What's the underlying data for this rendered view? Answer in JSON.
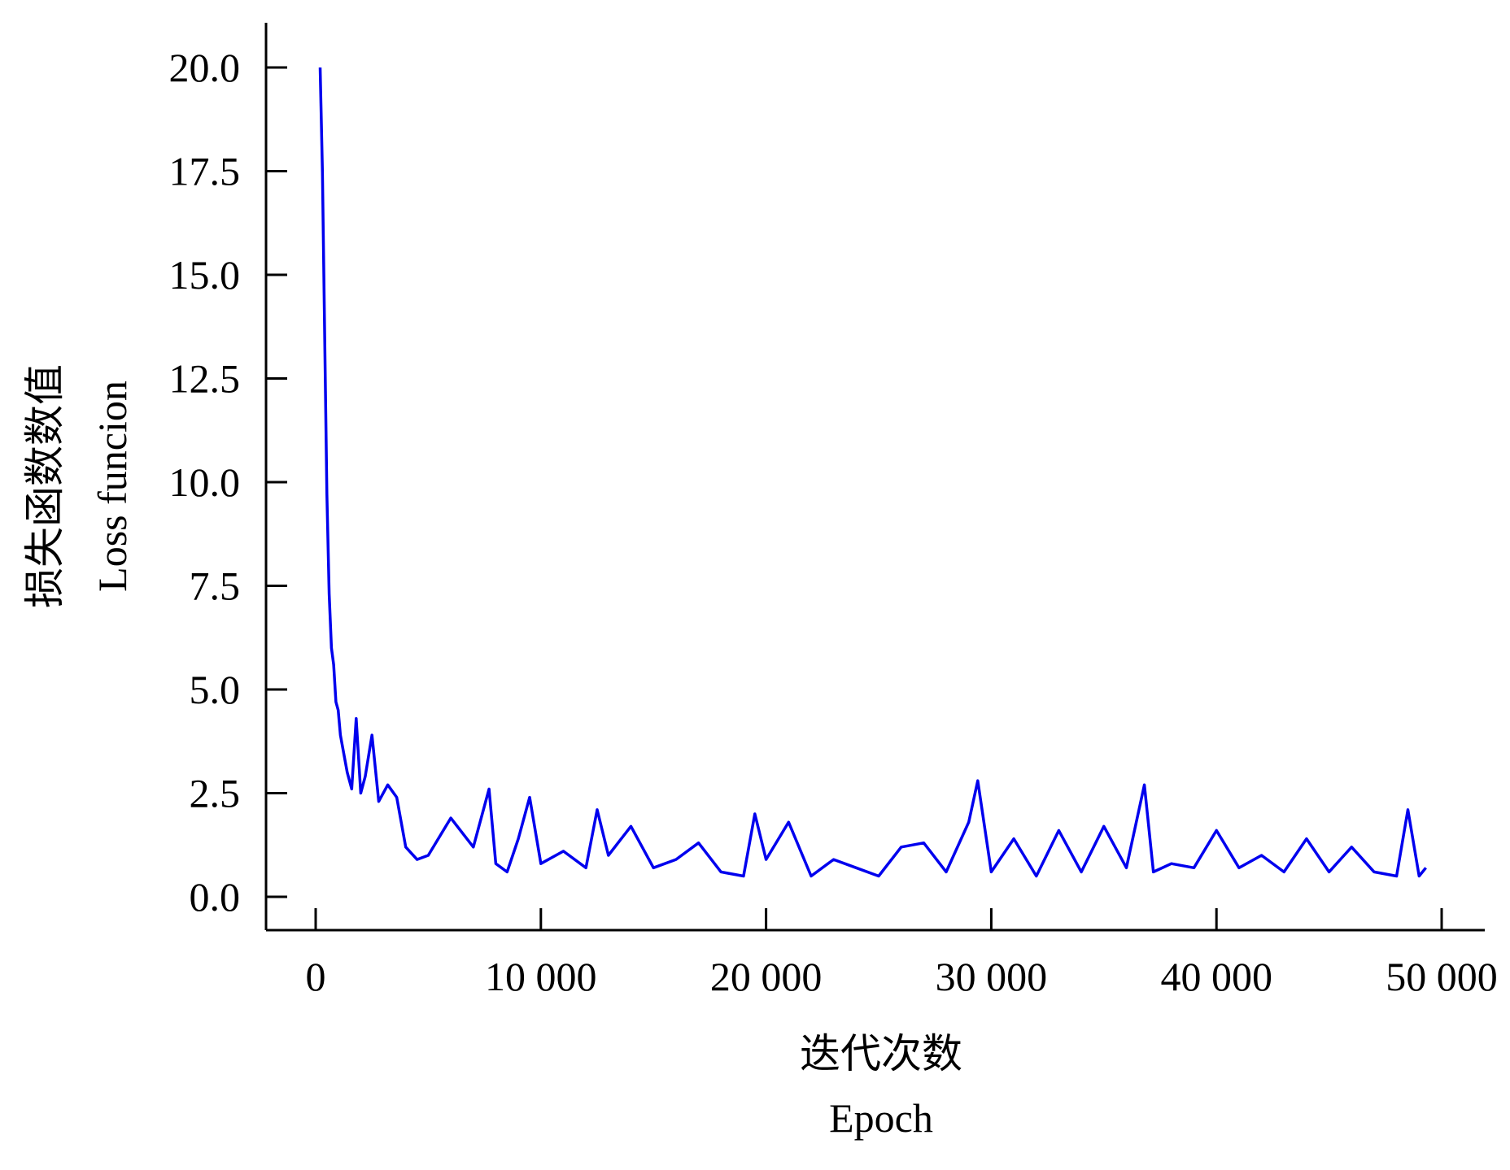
{
  "chart_data": {
    "type": "line",
    "title": "",
    "xlabel_zh": "迭代次数",
    "xlabel_en": "Epoch",
    "ylabel_zh": "损失函数数值",
    "ylabel_en": "Loss funcion",
    "xlim": [
      -2500,
      52000
    ],
    "ylim": [
      -0.8,
      21
    ],
    "x_ticks": [
      0,
      10000,
      20000,
      30000,
      40000,
      50000
    ],
    "x_tick_labels": [
      "0",
      "10 000",
      "20 000",
      "30 000",
      "40 000",
      "50 000"
    ],
    "y_ticks": [
      0.0,
      2.5,
      5.0,
      7.5,
      10.0,
      12.5,
      15.0,
      17.5,
      20.0
    ],
    "y_tick_labels": [
      "0.0",
      "2.5",
      "5.0",
      "7.5",
      "10.0",
      "12.5",
      "15.0",
      "17.5",
      "20.0"
    ],
    "grid": false,
    "series": [
      {
        "color": "#0000ee",
        "x": [
          200,
          300,
          400,
          500,
          600,
          700,
          800,
          900,
          1000,
          1100,
          1200,
          1400,
          1600,
          1800,
          2000,
          2200,
          2500,
          2800,
          3200,
          3600,
          4000,
          4500,
          5000,
          6000,
          7000,
          7700,
          8000,
          8500,
          9000,
          9500,
          10000,
          11000,
          12000,
          12500,
          13000,
          14000,
          15000,
          16000,
          17000,
          18000,
          19000,
          19500,
          20000,
          21000,
          22000,
          23000,
          24000,
          25000,
          26000,
          27000,
          28000,
          29000,
          29400,
          30000,
          31000,
          32000,
          33000,
          34000,
          35000,
          36000,
          36800,
          37200,
          38000,
          39000,
          40000,
          41000,
          42000,
          43000,
          44000,
          45000,
          46000,
          47000,
          48000,
          48500,
          49000,
          49300
        ],
        "y": [
          20.0,
          17.5,
          13.5,
          9.7,
          7.3,
          6.0,
          5.6,
          4.7,
          4.5,
          3.9,
          3.6,
          3.0,
          2.6,
          4.3,
          2.5,
          2.9,
          3.9,
          2.3,
          2.7,
          2.4,
          1.2,
          0.9,
          1.0,
          1.9,
          1.2,
          2.6,
          0.8,
          0.6,
          1.4,
          2.4,
          0.8,
          1.1,
          0.7,
          2.1,
          1.0,
          1.7,
          0.7,
          0.9,
          1.3,
          0.6,
          0.5,
          2.0,
          0.9,
          1.8,
          0.5,
          0.9,
          0.7,
          0.5,
          1.2,
          1.3,
          0.6,
          1.8,
          2.8,
          0.6,
          1.4,
          0.5,
          1.6,
          0.6,
          1.7,
          0.7,
          2.7,
          0.6,
          0.8,
          0.7,
          1.6,
          0.7,
          1.0,
          0.6,
          1.4,
          0.6,
          1.2,
          0.6,
          0.5,
          2.1,
          0.5,
          0.7
        ]
      }
    ]
  }
}
